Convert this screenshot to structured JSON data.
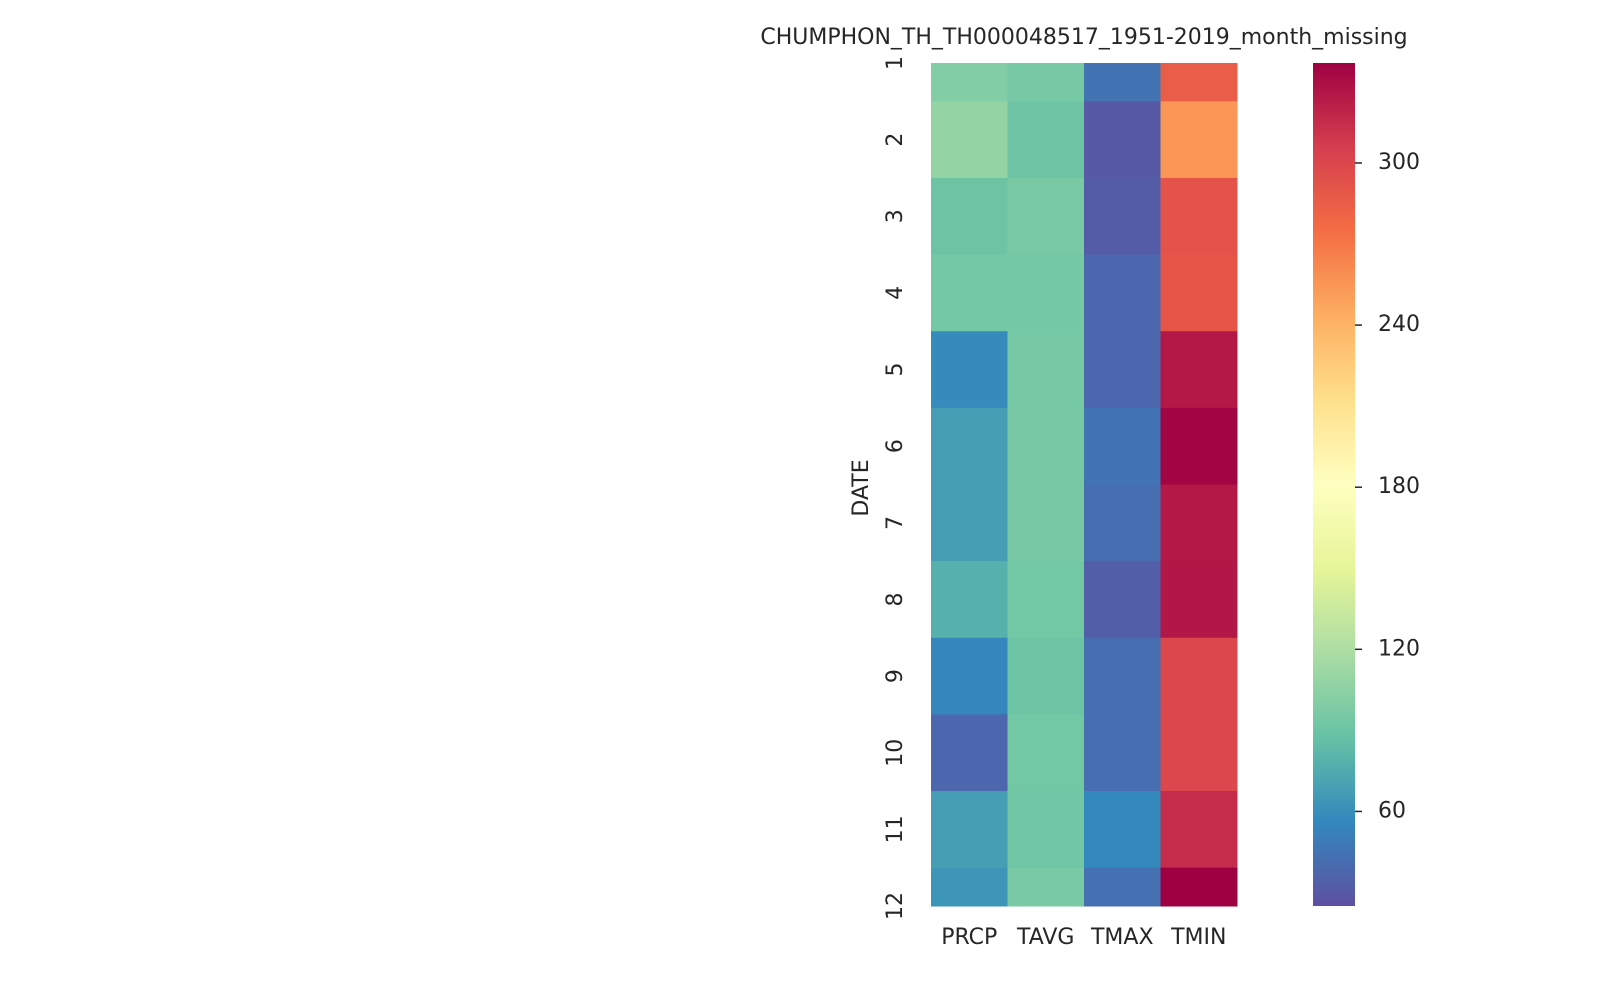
{
  "chart_data": {
    "type": "heatmap",
    "title": "CHUMPHON_TH_TH000048517_1951-2019_month_missing",
    "ylabel": "DATE",
    "x_categories": [
      "PRCP",
      "TAVG",
      "TMAX",
      "TMIN"
    ],
    "y_categories": [
      "1",
      "2",
      "3",
      "4",
      "5",
      "6",
      "7",
      "8",
      "9",
      "10",
      "11",
      "12"
    ],
    "values": [
      [
        100,
        95,
        45,
        285
      ],
      [
        108,
        90,
        30,
        255
      ],
      [
        90,
        96,
        32,
        292
      ],
      [
        94,
        94,
        38,
        290
      ],
      [
        58,
        95,
        38,
        325
      ],
      [
        68,
        95,
        45,
        335
      ],
      [
        68,
        95,
        42,
        325
      ],
      [
        78,
        93,
        33,
        326
      ],
      [
        55,
        90,
        42,
        300
      ],
      [
        38,
        93,
        42,
        300
      ],
      [
        68,
        92,
        57,
        315
      ],
      [
        63,
        96,
        43,
        337
      ]
    ],
    "colormap": "Spectral_r",
    "clim": [
      25,
      337
    ],
    "cticks": [
      60,
      120,
      180,
      240,
      300
    ]
  }
}
